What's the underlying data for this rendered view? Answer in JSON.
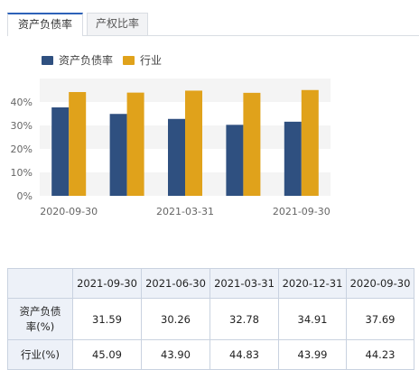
{
  "tabs": [
    {
      "label": "资产负债率",
      "active": true
    },
    {
      "label": "产权比率",
      "active": false
    }
  ],
  "colors": {
    "debt_ratio": "#2f5080",
    "industry": "#e0a21b",
    "accent": "#2d62b8"
  },
  "chart_data": {
    "type": "bar",
    "title": "",
    "xlabel": "",
    "ylabel": "",
    "categories": [
      "2020-09-30",
      "2020-12-31",
      "2021-03-31",
      "2021-06-30",
      "2021-09-30"
    ],
    "x_tick_labels": [
      "2020-09-30",
      "2021-03-31",
      "2021-09-30"
    ],
    "series": [
      {
        "name": "资产负债率",
        "color": "#2f5080",
        "values": [
          37.69,
          34.91,
          32.78,
          30.26,
          31.59
        ]
      },
      {
        "name": "行业",
        "color": "#e0a21b",
        "values": [
          44.23,
          43.99,
          44.83,
          43.9,
          45.09
        ]
      }
    ],
    "y_ticks": [
      "0%",
      "10%",
      "20%",
      "30%",
      "40%"
    ],
    "ylim": [
      0,
      50
    ],
    "grid": "alternating horizontal bands",
    "legend_position": "top-left"
  },
  "table": {
    "corner": "",
    "headers": [
      "2021-09-30",
      "2021-06-30",
      "2021-03-31",
      "2020-12-31",
      "2020-09-30"
    ],
    "rows": [
      {
        "label": "资产负债率(%)",
        "values": [
          "31.59",
          "30.26",
          "32.78",
          "34.91",
          "37.69"
        ]
      },
      {
        "label": "行业(%)",
        "values": [
          "45.09",
          "43.90",
          "44.83",
          "43.99",
          "44.23"
        ]
      }
    ]
  }
}
